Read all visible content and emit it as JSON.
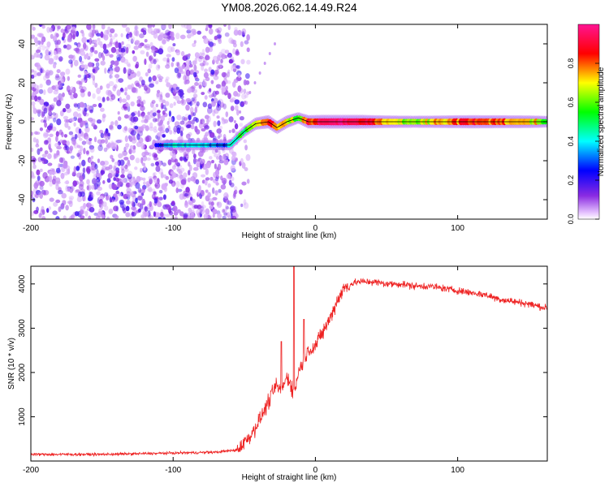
{
  "figure": {
    "title": "YM08.2026.062.14.49.R24"
  },
  "chart_data": [
    {
      "type": "heatmap",
      "title": "YM08.2026.062.14.49.R24",
      "xlabel": "Height of straight line (km)",
      "ylabel": "Frequency (Hz)",
      "xlim": [
        -200,
        163
      ],
      "ylim": [
        -50,
        50
      ],
      "xticks": [
        -200,
        -100,
        0,
        100
      ],
      "yticks": [
        -40,
        -20,
        0,
        20,
        40
      ],
      "colorbar": {
        "label": "Normalized spectral amplitude",
        "range": [
          0,
          1
        ],
        "ticks": [
          0.0,
          0.2,
          0.4,
          0.6,
          0.8
        ],
        "colormap": [
          "#e8c8ff",
          "#8a2be2",
          "#0000ff",
          "#00ffff",
          "#00ff00",
          "#ffff00",
          "#ff0000",
          "#ff1493"
        ]
      },
      "noise_region_x": [
        -200,
        -55
      ],
      "ridge": [
        {
          "x": -110,
          "freq": -12,
          "amp": 0.3
        },
        {
          "x": -95,
          "freq": -12,
          "amp": 0.45
        },
        {
          "x": -85,
          "freq": -12,
          "amp": 0.4
        },
        {
          "x": -70,
          "freq": -12,
          "amp": 0.35
        },
        {
          "x": -60,
          "freq": -12,
          "amp": 0.4
        },
        {
          "x": -50,
          "freq": -5,
          "amp": 0.55
        },
        {
          "x": -42,
          "freq": -1,
          "amp": 0.7
        },
        {
          "x": -33,
          "freq": 0,
          "amp": 0.85
        },
        {
          "x": -27,
          "freq": -3,
          "amp": 0.8
        },
        {
          "x": -20,
          "freq": 0,
          "amp": 0.75
        },
        {
          "x": -12,
          "freq": 2,
          "amp": 0.55
        },
        {
          "x": -5,
          "freq": 0,
          "amp": 0.85
        },
        {
          "x": 10,
          "freq": 0,
          "amp": 0.95
        },
        {
          "x": 30,
          "freq": 0,
          "amp": 0.95
        },
        {
          "x": 50,
          "freq": 0,
          "amp": 0.75
        },
        {
          "x": 70,
          "freq": 0,
          "amp": 0.65
        },
        {
          "x": 90,
          "freq": 0,
          "amp": 0.75
        },
        {
          "x": 110,
          "freq": 0,
          "amp": 0.85
        },
        {
          "x": 130,
          "freq": 0,
          "amp": 0.8
        },
        {
          "x": 150,
          "freq": 0,
          "amp": 0.75
        },
        {
          "x": 163,
          "freq": 0,
          "amp": 0.6
        }
      ]
    },
    {
      "type": "line",
      "xlabel": "Height of straight line (km)",
      "ylabel": "SNR (10 * v/v)",
      "xlim": [
        -200,
        163
      ],
      "ylim": [
        0,
        4400
      ],
      "xticks": [
        -200,
        -100,
        0,
        100
      ],
      "yticks": [
        1000,
        2000,
        3000,
        4000
      ],
      "series": [
        {
          "name": "SNR",
          "color": "#ee2222",
          "x": [
            -200,
            -150,
            -100,
            -70,
            -55,
            -45,
            -38,
            -32,
            -28,
            -24,
            -20,
            -18,
            -15,
            -12,
            -8,
            -5,
            0,
            5,
            10,
            15,
            20,
            25,
            30,
            40,
            50,
            60,
            70,
            80,
            90,
            100,
            110,
            120,
            130,
            140,
            150,
            163
          ],
          "y": [
            150,
            150,
            180,
            200,
            250,
            600,
            1000,
            1400,
            1700,
            1600,
            1900,
            1800,
            1500,
            2000,
            2300,
            2500,
            2600,
            2900,
            3200,
            3600,
            3900,
            4000,
            4050,
            4050,
            4000,
            4000,
            3950,
            3950,
            3900,
            3850,
            3800,
            3750,
            3650,
            3600,
            3550,
            3450
          ]
        }
      ],
      "spikes": [
        {
          "x": -15,
          "y": 4400
        },
        {
          "x": -8,
          "y": 3200
        },
        {
          "x": -24,
          "y": 2700
        }
      ]
    }
  ]
}
